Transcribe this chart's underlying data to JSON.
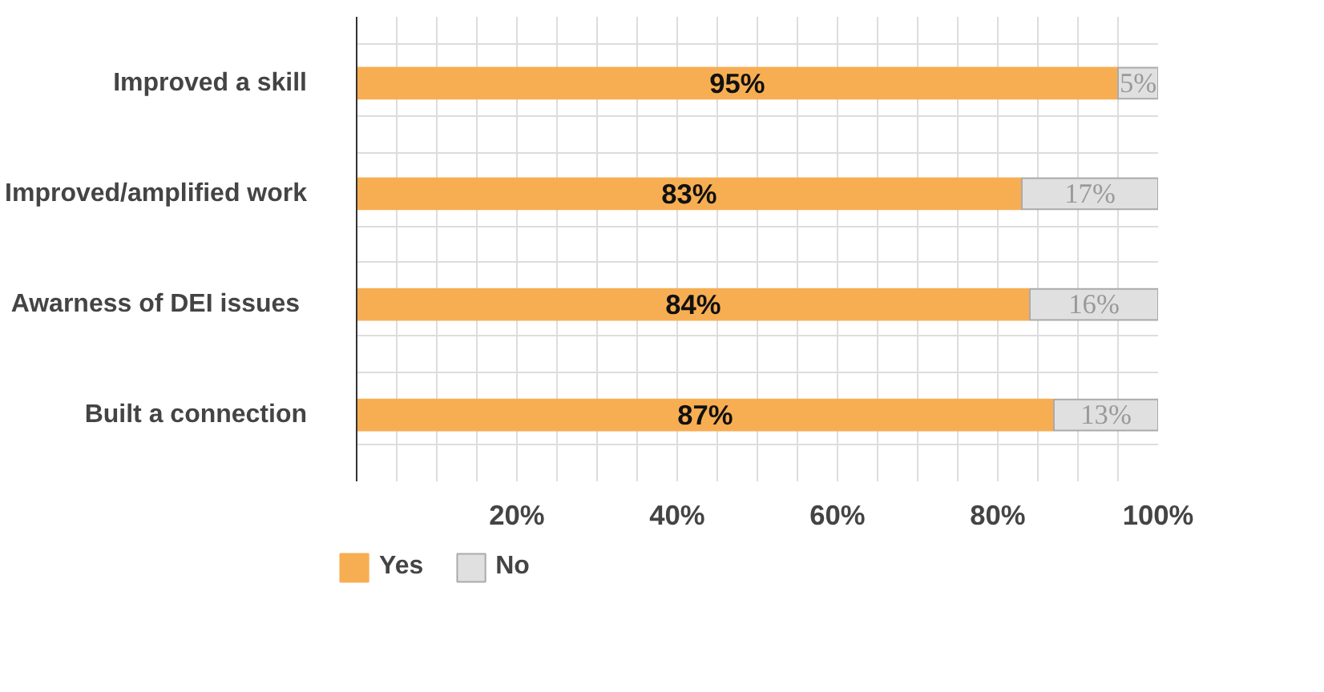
{
  "chart_data": {
    "type": "bar",
    "orientation": "horizontal",
    "stacked": true,
    "categories": [
      "Improved a skill",
      "Improved/amplified work",
      "Awarness of  DEI issues",
      "Built a connection"
    ],
    "series": [
      {
        "name": "Yes",
        "color": "#f7ae52",
        "values": [
          95,
          83,
          84,
          87
        ],
        "value_labels": [
          "95%",
          "83%",
          "84%",
          "87%"
        ]
      },
      {
        "name": "No",
        "color": "#e0e0e0",
        "values": [
          5,
          17,
          16,
          13
        ],
        "value_labels": [
          "5%",
          "17%",
          "16%",
          "13%"
        ]
      }
    ],
    "xlim": [
      0,
      100
    ],
    "xticks": [
      {
        "value": 0,
        "label": null
      },
      {
        "value": 5,
        "label": null
      },
      {
        "value": 10,
        "label": null
      },
      {
        "value": 15,
        "label": null
      },
      {
        "value": 20,
        "label": "20%"
      },
      {
        "value": 25,
        "label": null
      },
      {
        "value": 30,
        "label": null
      },
      {
        "value": 35,
        "label": null
      },
      {
        "value": 40,
        "label": "40%"
      },
      {
        "value": 45,
        "label": null
      },
      {
        "value": 50,
        "label": null
      },
      {
        "value": 55,
        "label": null
      },
      {
        "value": 60,
        "label": "60%"
      },
      {
        "value": 65,
        "label": null
      },
      {
        "value": 70,
        "label": null
      },
      {
        "value": 75,
        "label": null
      },
      {
        "value": 80,
        "label": "80%"
      },
      {
        "value": 85,
        "label": null
      },
      {
        "value": 90,
        "label": null
      },
      {
        "value": 95,
        "label": null
      },
      {
        "value": 100,
        "label": "100%"
      }
    ],
    "grid": true,
    "legend": "bottom"
  }
}
